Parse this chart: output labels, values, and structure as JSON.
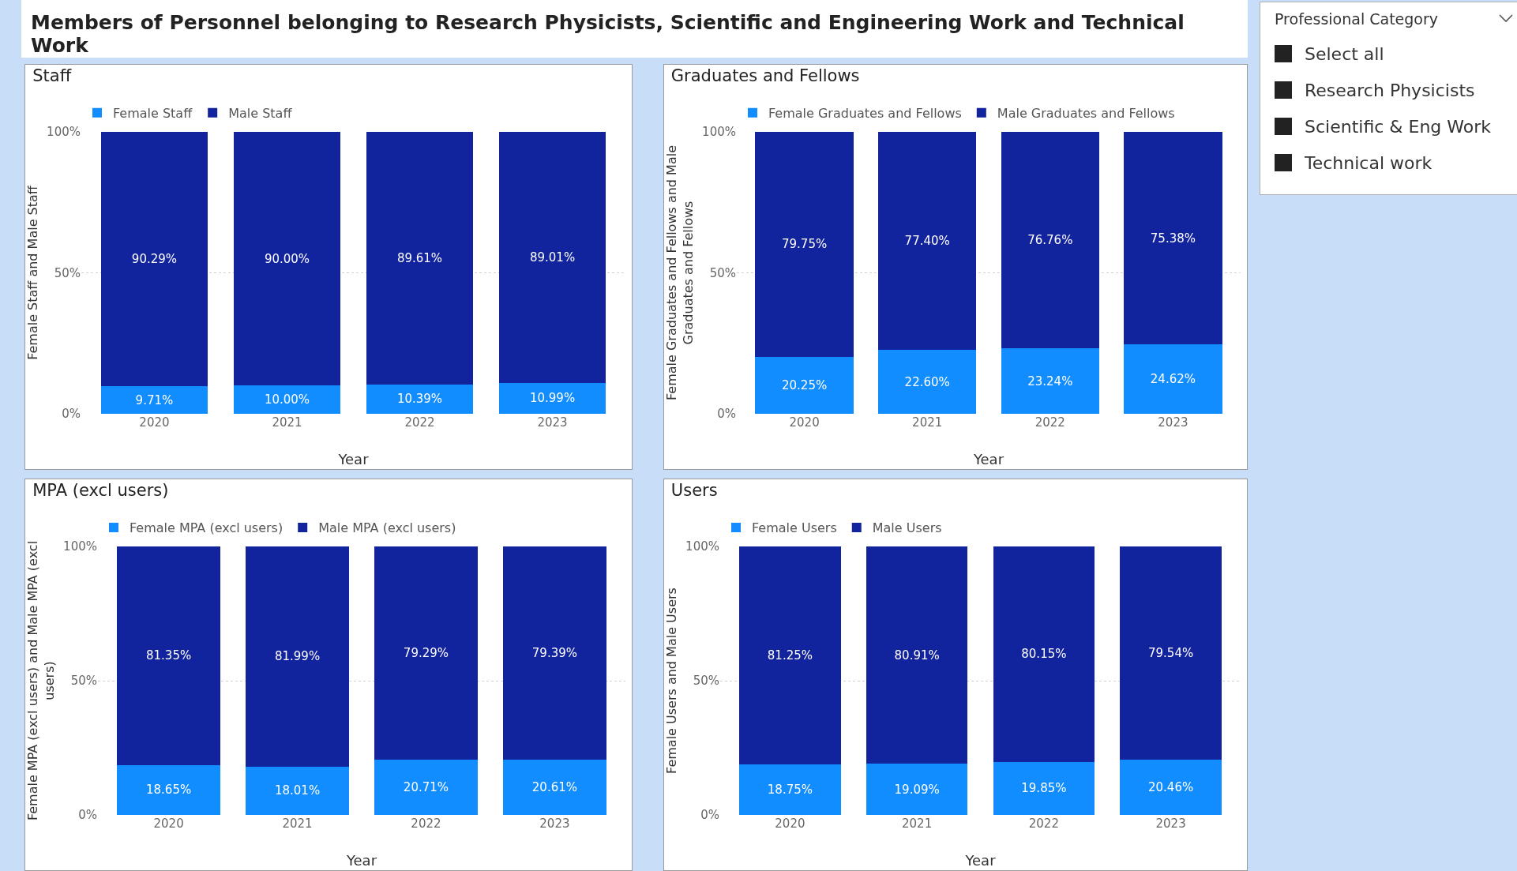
{
  "chart_data": [
    {
      "type": "other",
      "title": "Members of Personnel belonging to Research Physicists, Scientific and Engineering Work and Technical Work"
    },
    {
      "type": "bar",
      "title": "Staff",
      "xlabel": "Year",
      "ylabel": "Female Staff and Male Staff",
      "categories": [
        "2020",
        "2021",
        "2022",
        "2023"
      ],
      "stacked": true,
      "legend": "top left",
      "grid": "y",
      "ylim": [
        0,
        100
      ],
      "yticks": [
        {
          "value": 0,
          "label": "0%"
        },
        {
          "value": 50,
          "label": "50%"
        },
        {
          "value": 100,
          "label": "100%"
        }
      ],
      "series": [
        {
          "name": "Female Staff",
          "color": "#118dff",
          "values": [
            9.71,
            10.0,
            10.39,
            10.99
          ],
          "value_labels": [
            "9.71%",
            "10.00%",
            "10.39%",
            "10.99%"
          ]
        },
        {
          "name": "Male Staff",
          "color": "#12239e",
          "values": [
            90.29,
            90.0,
            89.61,
            89.01
          ],
          "value_labels": [
            "90.29%",
            "90.00%",
            "89.61%",
            "89.01%"
          ]
        }
      ]
    },
    {
      "type": "bar",
      "title": "Graduates and Fellows",
      "xlabel": "Year",
      "ylabel": "Female Graduates and Fellows and Male Graduates and Fellows",
      "categories": [
        "2020",
        "2021",
        "2022",
        "2023"
      ],
      "stacked": true,
      "legend": "top left",
      "grid": "y",
      "ylim": [
        0,
        100
      ],
      "yticks": [
        {
          "value": 0,
          "label": "0%"
        },
        {
          "value": 50,
          "label": "50%"
        },
        {
          "value": 100,
          "label": "100%"
        }
      ],
      "series": [
        {
          "name": "Female Graduates and Fellows",
          "color": "#118dff",
          "values": [
            20.25,
            22.6,
            23.24,
            24.62
          ],
          "value_labels": [
            "20.25%",
            "22.60%",
            "23.24%",
            "24.62%"
          ]
        },
        {
          "name": "Male Graduates and Fellows",
          "color": "#12239e",
          "values": [
            79.75,
            77.4,
            76.76,
            75.38
          ],
          "value_labels": [
            "79.75%",
            "77.40%",
            "76.76%",
            "75.38%"
          ]
        }
      ]
    },
    {
      "type": "bar",
      "title": "MPA (excl users)",
      "xlabel": "Year",
      "ylabel": "Female MPA (excl users) and Male MPA (excl users)",
      "categories": [
        "2020",
        "2021",
        "2022",
        "2023"
      ],
      "stacked": true,
      "legend": "top left",
      "grid": "y",
      "ylim": [
        0,
        100
      ],
      "yticks": [
        {
          "value": 0,
          "label": "0%"
        },
        {
          "value": 50,
          "label": "50%"
        },
        {
          "value": 100,
          "label": "100%"
        }
      ],
      "series": [
        {
          "name": "Female MPA (excl users)",
          "color": "#118dff",
          "values": [
            18.65,
            18.01,
            20.71,
            20.61
          ],
          "value_labels": [
            "18.65%",
            "18.01%",
            "20.71%",
            "20.61%"
          ]
        },
        {
          "name": "Male MPA (excl users)",
          "color": "#12239e",
          "values": [
            81.35,
            81.99,
            79.29,
            79.39
          ],
          "value_labels": [
            "81.35%",
            "81.99%",
            "79.29%",
            "79.39%"
          ]
        }
      ]
    },
    {
      "type": "bar",
      "title": "Users",
      "xlabel": "Year",
      "ylabel": "Female Users and Male Users",
      "categories": [
        "2020",
        "2021",
        "2022",
        "2023"
      ],
      "stacked": true,
      "legend": "top left",
      "grid": "y",
      "ylim": [
        0,
        100
      ],
      "yticks": [
        {
          "value": 0,
          "label": "0%"
        },
        {
          "value": 50,
          "label": "50%"
        },
        {
          "value": 100,
          "label": "100%"
        }
      ],
      "series": [
        {
          "name": "Female Users",
          "color": "#118dff",
          "values": [
            18.75,
            19.09,
            19.85,
            20.46
          ],
          "value_labels": [
            "18.75%",
            "19.09%",
            "19.85%",
            "20.46%"
          ]
        },
        {
          "name": "Male Users",
          "color": "#12239e",
          "values": [
            81.25,
            80.91,
            80.15,
            79.54
          ],
          "value_labels": [
            "81.25%",
            "80.91%",
            "80.15%",
            "79.54%"
          ]
        }
      ]
    },
    {
      "type": "other",
      "title": "Professional Category",
      "annotations": [
        "Select all",
        "Research Physicists",
        "Scientific & Eng Work",
        "Technical work"
      ]
    }
  ]
}
